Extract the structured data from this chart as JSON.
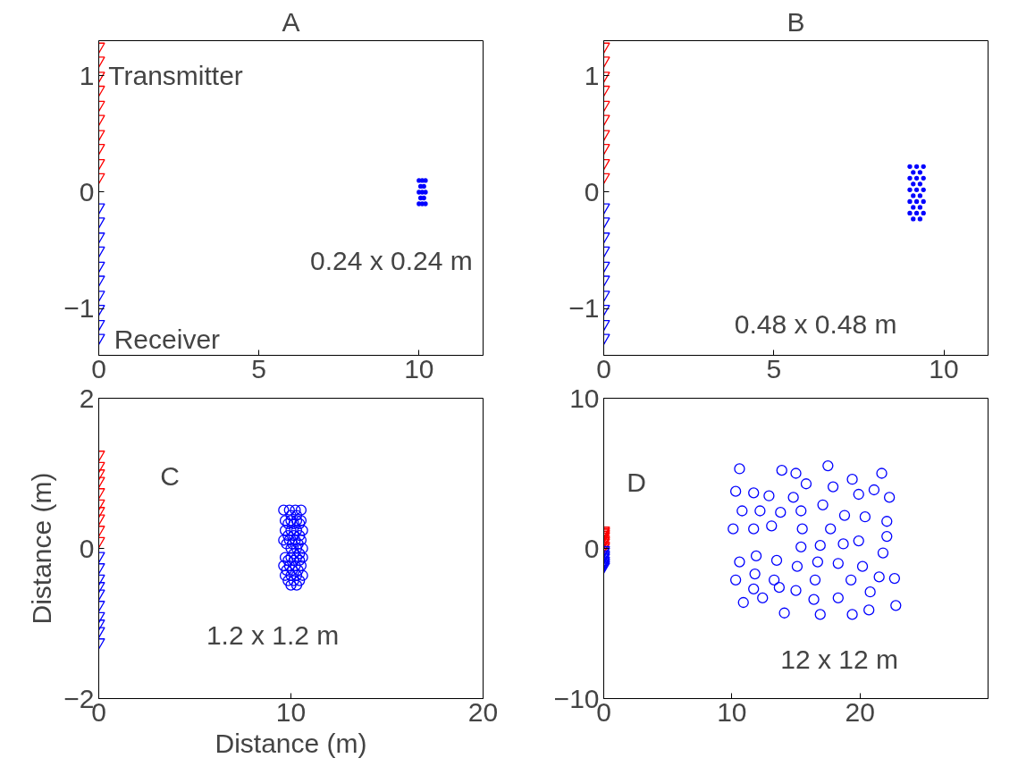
{
  "chart_data": [
    {
      "type": "scatter",
      "title": "A",
      "xlim": [
        0,
        12
      ],
      "ylim": [
        -1.4,
        1.3
      ],
      "xticks": [
        0,
        5,
        10
      ],
      "yticks": [
        {
          "value": -1,
          "label": "−1"
        },
        0,
        1
      ],
      "grid": false,
      "series": [
        {
          "color": "#ff0000",
          "marker": "triangle",
          "x": [
            0,
            0,
            0,
            0,
            0,
            0,
            0,
            0,
            0,
            0
          ],
          "values": [
            1.25,
            1.13,
            1.0,
            0.88,
            0.75,
            0.63,
            0.5,
            0.38,
            0.25,
            0.13
          ]
        },
        {
          "color": "#0000ff",
          "marker": "triangle",
          "x": [
            0,
            0,
            0,
            0,
            0,
            0,
            0,
            0,
            0,
            0
          ],
          "values": [
            -0.13,
            -0.25,
            -0.38,
            -0.5,
            -0.63,
            -0.75,
            -0.88,
            -1.0,
            -1.13,
            -1.25
          ]
        },
        {
          "color": "#0000ff",
          "marker": "circle",
          "x": [
            10.0,
            10.1,
            10.2,
            10.05,
            10.15,
            10.0,
            10.1,
            10.2,
            10.05,
            10.15,
            10.0,
            10.1,
            10.2
          ],
          "values": [
            0.1,
            0.1,
            0.1,
            0.05,
            0.05,
            0,
            0,
            0,
            -0.05,
            -0.05,
            -0.1,
            -0.1,
            -0.1
          ]
        }
      ],
      "annotations": [
        {
          "text": "Transmitter",
          "x": 0.3,
          "y": 1.0
        },
        "Receiver",
        "0.24 x 0.24 m"
      ]
    },
    {
      "type": "scatter",
      "title": "B",
      "xlim": [
        0,
        11.3
      ],
      "ylim": [
        -1.4,
        1.3
      ],
      "xticks": [
        0,
        5,
        10
      ],
      "yticks": [
        {
          "value": -1,
          "label": "−1"
        },
        0,
        1
      ],
      "grid": false,
      "series": [
        {
          "color": "#ff0000",
          "marker": "triangle",
          "x": [
            0,
            0,
            0,
            0,
            0,
            0,
            0,
            0,
            0,
            0
          ],
          "values": [
            1.25,
            1.13,
            1.0,
            0.88,
            0.75,
            0.63,
            0.5,
            0.38,
            0.25,
            0.13
          ]
        },
        {
          "color": "#0000ff",
          "marker": "triangle",
          "x": [
            0,
            0,
            0,
            0,
            0,
            0,
            0,
            0,
            0,
            0
          ],
          "values": [
            -0.13,
            -0.25,
            -0.38,
            -0.5,
            -0.63,
            -0.75,
            -0.88,
            -1.0,
            -1.13,
            -1.25
          ]
        },
        {
          "color": "#0000ff",
          "marker": "circle",
          "x": [
            9.0,
            9.2,
            9.4,
            9.1,
            9.3,
            9.0,
            9.2,
            9.4,
            9.1,
            9.3,
            9.0,
            9.2,
            9.4,
            9.1,
            9.3,
            9.0,
            9.2,
            9.4,
            9.1,
            9.3,
            9.0,
            9.2,
            9.4,
            9.1,
            9.3
          ],
          "values": [
            0.22,
            0.22,
            0.22,
            0.17,
            0.17,
            0.12,
            0.12,
            0.12,
            0.07,
            0.07,
            0.02,
            0.02,
            0.02,
            -0.03,
            -0.03,
            -0.08,
            -0.08,
            -0.08,
            -0.13,
            -0.13,
            -0.18,
            -0.18,
            -0.18,
            -0.23,
            -0.23
          ]
        }
      ],
      "annotations": [
        "0.48 x 0.48 m"
      ]
    },
    {
      "type": "scatter",
      "xlim": [
        0,
        20
      ],
      "ylim": [
        -2,
        2
      ],
      "xticks": [
        0,
        10,
        20
      ],
      "yticks": [
        {
          "value": -2,
          "label": "−2"
        },
        0,
        2
      ],
      "grid": false,
      "xlabel": "Distance (m)",
      "ylabel": "Distance (m)",
      "series": [
        {
          "color": "#ff0000",
          "marker": "triangle",
          "x": [
            0,
            0,
            0,
            0,
            0,
            0,
            0,
            0,
            0,
            0
          ],
          "values": [
            1.25,
            1.1,
            1.0,
            0.9,
            0.75,
            0.6,
            0.5,
            0.4,
            0.25,
            0.1
          ]
        },
        {
          "color": "#0000ff",
          "marker": "triangle",
          "x": [
            0,
            0,
            0,
            0,
            0,
            0,
            0,
            0,
            0,
            0
          ],
          "values": [
            -0.1,
            -0.25,
            -0.4,
            -0.5,
            -0.6,
            -0.75,
            -0.9,
            -1.0,
            -1.1,
            -1.25
          ]
        },
        {
          "color": "#0000ff",
          "marker": "circle",
          "x": [
            9.62,
            9.92,
            10.23,
            10.53,
            10.0,
            10.3,
            9.7,
            10.0,
            10.3,
            10.53,
            9.85,
            10.15,
            10.45,
            9.7,
            10.0,
            10.3,
            10.61,
            9.85,
            10.15,
            10.45,
            9.62,
            9.92,
            10.23,
            10.53,
            9.77,
            10.08,
            10.38,
            10.0,
            10.3,
            10.61,
            10.15,
            10.45,
            9.7,
            10.0,
            10.3,
            10.61,
            9.85,
            10.15,
            10.45,
            9.62,
            9.92,
            10.23,
            10.53,
            9.77,
            10.08,
            10.38,
            9.7,
            10.0,
            10.3,
            10.61,
            9.85,
            10.15,
            10.45,
            10.0,
            10.3
          ],
          "values": [
            0.51,
            0.51,
            0.51,
            0.51,
            0.44,
            0.44,
            0.37,
            0.37,
            0.37,
            0.37,
            0.33,
            0.33,
            0.33,
            0.24,
            0.24,
            0.24,
            0.24,
            0.17,
            0.17,
            0.17,
            0.11,
            0.11,
            0.11,
            0.11,
            0.06,
            0.06,
            0.06,
            0.0,
            0.0,
            0.0,
            -0.07,
            -0.07,
            -0.12,
            -0.12,
            -0.12,
            -0.12,
            -0.16,
            -0.16,
            -0.16,
            -0.23,
            -0.23,
            -0.23,
            -0.23,
            -0.29,
            -0.29,
            -0.29,
            -0.36,
            -0.36,
            -0.36,
            -0.36,
            -0.43,
            -0.43,
            -0.43,
            -0.49,
            -0.49
          ]
        }
      ],
      "annotations": [
        "C",
        "1.2 x 1.2 m"
      ]
    },
    {
      "type": "scatter",
      "xlim": [
        0,
        30
      ],
      "ylim": [
        -10,
        10
      ],
      "xticks": [
        0,
        10,
        20
      ],
      "yticks": [
        {
          "value": -10,
          "label": "−10"
        },
        0,
        10
      ],
      "grid": false,
      "series": [
        {
          "color": "#ff0000",
          "marker": "triangle",
          "x": [
            0,
            0,
            0,
            0,
            0,
            0,
            0,
            0,
            0,
            0
          ],
          "values": [
            1.2,
            1.1,
            1.0,
            0.9,
            0.8,
            0.6,
            0.5,
            0.4,
            0.2,
            0.1
          ]
        },
        {
          "color": "#0000ff",
          "marker": "triangle",
          "x": [
            0,
            0,
            0,
            0,
            0,
            0,
            0,
            0,
            0,
            0
          ],
          "values": [
            -0.1,
            -0.2,
            -0.4,
            -0.5,
            -0.6,
            -0.8,
            -0.9,
            -1.0,
            -1.1,
            -1.2
          ]
        },
        {
          "color": "#0000ff",
          "marker": "circle",
          "x": [
            10.6,
            13.9,
            15.0,
            17.5,
            19.4,
            21.7,
            15.8,
            17.9,
            10.3,
            11.7,
            12.9,
            14.8,
            19.9,
            21.1,
            22.3,
            17.1,
            10.8,
            12.2,
            13.8,
            15.4,
            18.8,
            20.4,
            22.1,
            10.1,
            11.7,
            13.1,
            15.5,
            17.7,
            22.1,
            15.4,
            16.9,
            18.7,
            19.9,
            21.8,
            10.6,
            11.9,
            13.5,
            15.1,
            16.7,
            18.3,
            20.2,
            10.3,
            11.8,
            13.3,
            13.7,
            11.7,
            15.0,
            16.5,
            19.3,
            21.5,
            22.7,
            20.8,
            10.9,
            12.4,
            16.4,
            18.3,
            14.1,
            16.9,
            19.4,
            20.7,
            22.8
          ],
          "values": [
            5.3,
            5.2,
            5.0,
            5.5,
            4.6,
            5.0,
            4.3,
            4.1,
            3.8,
            3.7,
            3.5,
            3.4,
            3.6,
            3.9,
            3.4,
            2.9,
            2.5,
            2.5,
            2.4,
            2.5,
            2.2,
            2.1,
            1.8,
            1.3,
            1.3,
            1.5,
            1.3,
            1.3,
            0.8,
            0.1,
            0.2,
            0.3,
            0.5,
            -0.3,
            -0.9,
            -0.5,
            -0.8,
            -1.2,
            -0.9,
            -1.0,
            -1.2,
            -2.1,
            -1.7,
            -2.1,
            -2.6,
            -2.7,
            -2.8,
            -2.1,
            -2.1,
            -1.9,
            -2.0,
            -2.9,
            -3.6,
            -3.3,
            -3.4,
            -3.3,
            -4.3,
            -4.4,
            -4.4,
            -4.1,
            -3.8
          ]
        }
      ],
      "annotations": [
        "D",
        "12 x 12 m"
      ]
    }
  ]
}
